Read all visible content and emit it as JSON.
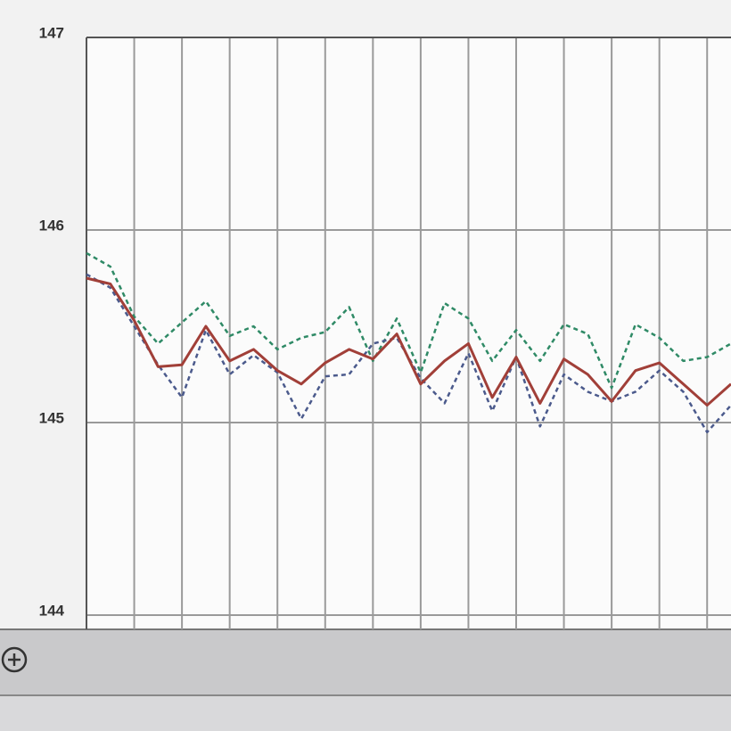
{
  "chart_data": {
    "type": "line",
    "categories": [
      null,
      null,
      null,
      null,
      null,
      null,
      null,
      null,
      null,
      null,
      null,
      null,
      null,
      null,
      null,
      null,
      null,
      null,
      null,
      null,
      null,
      null,
      null,
      null,
      null,
      null,
      null,
      null
    ],
    "series": [
      {
        "color": "#2f8a66",
        "line_style": "dashed",
        "values": [
          145.88,
          145.81,
          145.55,
          145.41,
          145.52,
          145.63,
          145.45,
          145.5,
          145.38,
          145.44,
          145.47,
          145.6,
          145.32,
          145.54,
          145.26,
          145.62,
          145.54,
          145.32,
          145.48,
          145.32,
          145.51,
          145.46,
          145.18,
          145.51,
          145.44,
          145.32,
          145.34,
          145.41
        ]
      },
      {
        "color": "#4b5a8c",
        "line_style": "dashed",
        "values": [
          145.77,
          145.7,
          145.5,
          145.3,
          145.13,
          145.48,
          145.25,
          145.35,
          145.26,
          145.02,
          145.24,
          145.25,
          145.41,
          145.44,
          145.23,
          145.1,
          145.36,
          145.06,
          145.34,
          144.98,
          145.25,
          145.16,
          145.11,
          145.16,
          145.27,
          145.16,
          144.95,
          145.09
        ]
      },
      {
        "color": "#a13f38",
        "line_style": "solid",
        "values": [
          145.75,
          145.72,
          145.53,
          145.29,
          145.3,
          145.5,
          145.32,
          145.38,
          145.27,
          145.2,
          145.31,
          145.38,
          145.33,
          145.46,
          145.2,
          145.32,
          145.41,
          145.13,
          145.34,
          145.1,
          145.33,
          145.25,
          145.11,
          145.27,
          145.31,
          145.2,
          145.09,
          145.2
        ]
      }
    ],
    "ylim": [
      144,
      147
    ],
    "yticks": [
      144,
      145,
      146,
      147
    ],
    "grid": true
  }
}
